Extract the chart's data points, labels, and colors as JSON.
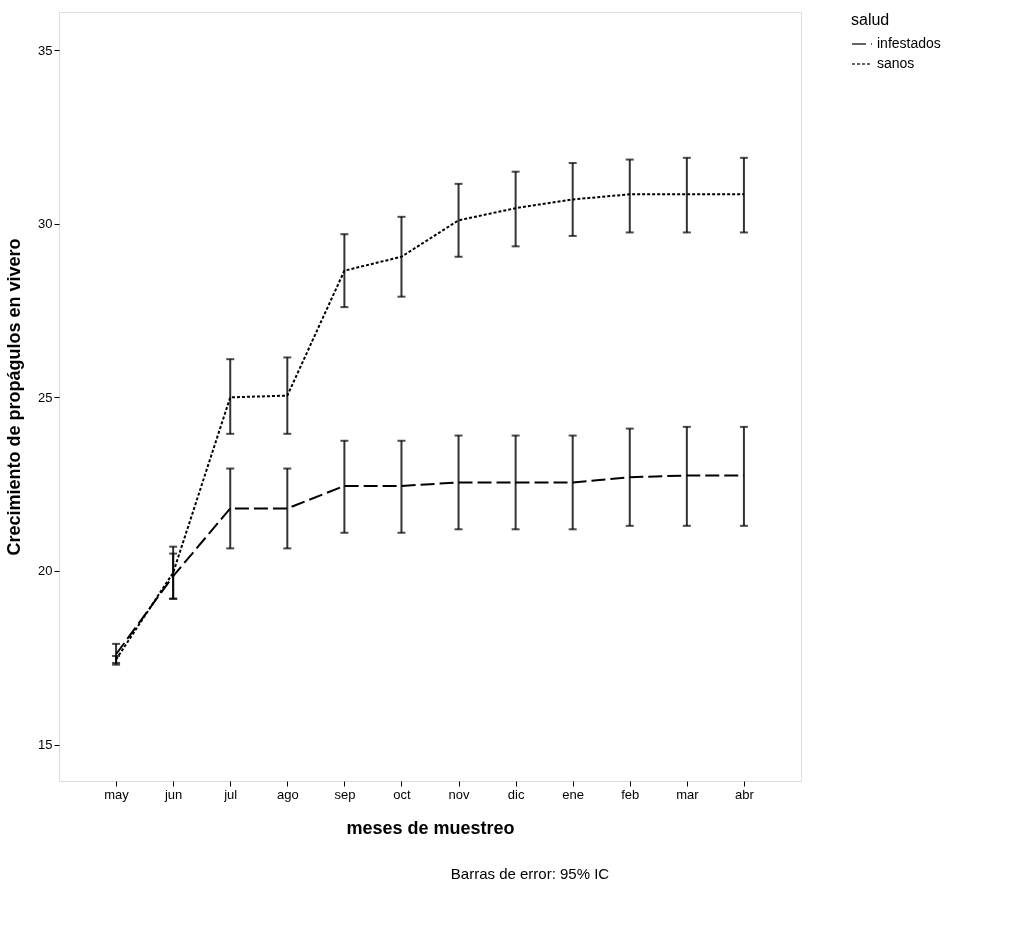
{
  "chart_data": {
    "type": "line",
    "xlabel": "meses de muestreo",
    "ylabel": "Crecimiento de propágulos en vivero",
    "legend_title": "salud",
    "legend": "right",
    "grid": false,
    "marker": "none",
    "categories": [
      "may",
      "jun",
      "jul",
      "ago",
      "sep",
      "oct",
      "nov",
      "dic",
      "ene",
      "feb",
      "mar",
      "abr"
    ],
    "ylim": [
      13.95,
      36.1
    ],
    "yticks": [
      15,
      20,
      25,
      30,
      35
    ],
    "annotations": [
      "Barras de error: 95% IC"
    ],
    "series": [
      {
        "name": "infestados",
        "color": "#000000",
        "line_style": "dashed",
        "values": [
          17.6,
          19.85,
          21.8,
          21.8,
          22.45,
          22.45,
          22.55,
          22.55,
          22.55,
          22.7,
          22.75,
          22.75
        ],
        "errors": [
          [
            17.3,
            17.9
          ],
          [
            19.2,
            20.5
          ],
          [
            20.65,
            22.95
          ],
          [
            20.65,
            22.95
          ],
          [
            21.1,
            23.75
          ],
          [
            21.1,
            23.75
          ],
          [
            21.2,
            23.9
          ],
          [
            21.2,
            23.9
          ],
          [
            21.2,
            23.9
          ],
          [
            21.3,
            24.1
          ],
          [
            21.3,
            24.15
          ],
          [
            21.3,
            24.15
          ]
        ]
      },
      {
        "name": "sanos",
        "color": "#000000",
        "line_style": "dotted",
        "values": [
          17.45,
          19.95,
          25.0,
          25.05,
          28.65,
          29.05,
          30.1,
          30.45,
          30.7,
          30.85,
          30.85,
          30.85
        ],
        "errors": [
          [
            17.35,
            17.55
          ],
          [
            19.2,
            20.7
          ],
          [
            23.95,
            26.1
          ],
          [
            23.95,
            26.15
          ],
          [
            27.6,
            29.7
          ],
          [
            27.9,
            30.2
          ],
          [
            29.05,
            31.15
          ],
          [
            29.35,
            31.5
          ],
          [
            29.65,
            31.75
          ],
          [
            29.75,
            31.85
          ],
          [
            29.75,
            31.9
          ],
          [
            29.75,
            31.9
          ]
        ]
      }
    ]
  }
}
